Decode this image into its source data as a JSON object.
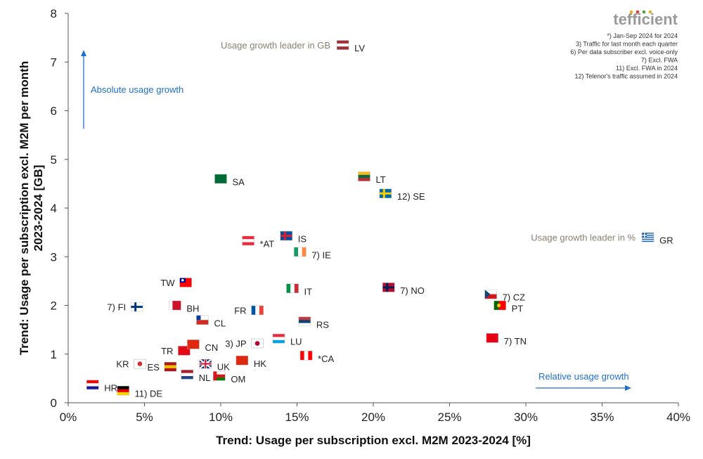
{
  "chart_data": {
    "type": "scatter",
    "xlabel": "Trend: Usage per subscription excl. M2M 2023-2024 [%]",
    "ylabel_line1": "Trend: Usage per subscription excl. M2M per month",
    "ylabel_line2": "2023-2024 [GB]",
    "xlim": [
      0,
      40
    ],
    "ylim": [
      0,
      8
    ],
    "x_ticks": [
      "0%",
      "5%",
      "10%",
      "15%",
      "20%",
      "25%",
      "30%",
      "35%",
      "40%"
    ],
    "y_ticks": [
      "0",
      "1",
      "2",
      "3",
      "4",
      "5",
      "6",
      "7",
      "8"
    ],
    "points": [
      {
        "code": "LV",
        "label": "LV",
        "x": 18.0,
        "y": 7.35,
        "side": "right",
        "colors": [
          "#9e3039",
          "#ffffff",
          "#9e3039"
        ],
        "orient": "h"
      },
      {
        "code": "SA",
        "label": "SA",
        "x": 10.0,
        "y": 4.6,
        "side": "right",
        "colors": [
          "#006c35"
        ],
        "orient": "solid"
      },
      {
        "code": "LT",
        "label": "LT",
        "x": 19.4,
        "y": 4.65,
        "side": "right",
        "colors": [
          "#fdb913",
          "#006a44",
          "#c1272d"
        ],
        "orient": "h"
      },
      {
        "code": "SE",
        "label": "12) SE",
        "x": 20.8,
        "y": 4.3,
        "side": "right",
        "colors": [
          "#006aa7",
          "#fecc00"
        ],
        "orient": "nordic"
      },
      {
        "code": "IS",
        "label": "IS",
        "x": 14.3,
        "y": 3.43,
        "side": "right",
        "colors": [
          "#02529c",
          "#dc1e35"
        ],
        "orient": "nordic"
      },
      {
        "code": "AT",
        "label": "*AT",
        "x": 11.8,
        "y": 3.33,
        "side": "right",
        "colors": [
          "#ed2939",
          "#ffffff",
          "#ed2939"
        ],
        "orient": "h"
      },
      {
        "code": "IE",
        "label": "7) IE",
        "x": 15.2,
        "y": 3.1,
        "side": "right",
        "colors": [
          "#169b62",
          "#ffffff",
          "#ff883e"
        ],
        "orient": "v"
      },
      {
        "code": "GR",
        "label": "GR",
        "x": 38.0,
        "y": 3.4,
        "side": "right",
        "colors": [
          "#0d5eaf",
          "#ffffff"
        ],
        "orient": "stripes"
      },
      {
        "code": "TW",
        "label": "TW",
        "x": 7.7,
        "y": 2.47,
        "side": "left",
        "colors": [
          "#fe0000",
          "#000095"
        ],
        "orient": "canton"
      },
      {
        "code": "IT",
        "label": "IT",
        "x": 14.7,
        "y": 2.35,
        "side": "right",
        "colors": [
          "#009246",
          "#ffffff",
          "#ce2b37"
        ],
        "orient": "v"
      },
      {
        "code": "NO",
        "label": "7) NO",
        "x": 21.0,
        "y": 2.37,
        "side": "right",
        "colors": [
          "#ba0c2f",
          "#00205b"
        ],
        "orient": "nordic"
      },
      {
        "code": "CZ",
        "label": "7) CZ",
        "x": 27.7,
        "y": 2.23,
        "side": "right",
        "colors": [
          "#ffffff",
          "#d7141a",
          "#11457e"
        ],
        "orient": "cz"
      },
      {
        "code": "PT",
        "label": "PT",
        "x": 28.3,
        "y": 2.0,
        "side": "right",
        "colors": [
          "#006600",
          "#ff0000"
        ],
        "orient": "pt"
      },
      {
        "code": "FI",
        "label": "7) FI",
        "x": 4.5,
        "y": 1.97,
        "side": "left",
        "colors": [
          "#ffffff",
          "#003580"
        ],
        "orient": "nordic"
      },
      {
        "code": "BH",
        "label": "BH",
        "x": 7.0,
        "y": 2.0,
        "side": "right",
        "colors": [
          "#ffffff",
          "#ce1126"
        ],
        "orient": "bh"
      },
      {
        "code": "FR",
        "label": "FR",
        "x": 12.4,
        "y": 1.9,
        "side": "left",
        "colors": [
          "#0055a4",
          "#ffffff",
          "#ef4135"
        ],
        "orient": "v"
      },
      {
        "code": "CL",
        "label": "CL",
        "x": 8.8,
        "y": 1.7,
        "side": "right",
        "colors": [
          "#ffffff",
          "#d52b1e",
          "#0039a6"
        ],
        "orient": "canton2"
      },
      {
        "code": "RS",
        "label": "RS",
        "x": 15.5,
        "y": 1.67,
        "side": "right",
        "colors": [
          "#c6363c",
          "#0c4076",
          "#ffffff"
        ],
        "orient": "h"
      },
      {
        "code": "LU",
        "label": "LU",
        "x": 13.8,
        "y": 1.32,
        "side": "right",
        "colors": [
          "#ed2939",
          "#ffffff",
          "#00a1de"
        ],
        "orient": "h"
      },
      {
        "code": "TN",
        "label": "7) TN",
        "x": 27.8,
        "y": 1.33,
        "side": "right",
        "colors": [
          "#e70013"
        ],
        "orient": "solid"
      },
      {
        "code": "TR",
        "label": "TR",
        "x": 7.6,
        "y": 1.07,
        "side": "left",
        "colors": [
          "#e30a17"
        ],
        "orient": "solid"
      },
      {
        "code": "CN",
        "label": "CN",
        "x": 8.2,
        "y": 1.2,
        "side": "right",
        "colors": [
          "#de2910"
        ],
        "orient": "solid"
      },
      {
        "code": "JP",
        "label": "3) JP",
        "x": 12.4,
        "y": 1.22,
        "side": "left",
        "colors": [
          "#ffffff",
          "#bc002d"
        ],
        "orient": "jp"
      },
      {
        "code": "CA",
        "label": "*CA",
        "x": 15.6,
        "y": 0.97,
        "side": "right",
        "colors": [
          "#ff0000",
          "#ffffff",
          "#ff0000"
        ],
        "orient": "v"
      },
      {
        "code": "HK",
        "label": "HK",
        "x": 11.4,
        "y": 0.87,
        "side": "right",
        "colors": [
          "#de2910"
        ],
        "orient": "solid"
      },
      {
        "code": "KR",
        "label": "KR",
        "x": 4.7,
        "y": 0.8,
        "side": "left",
        "colors": [
          "#ffffff",
          "#cd2e3a"
        ],
        "orient": "jp"
      },
      {
        "code": "ES",
        "label": "ES",
        "x": 6.7,
        "y": 0.74,
        "side": "left",
        "colors": [
          "#aa151b",
          "#f1bf00",
          "#aa151b"
        ],
        "orient": "h"
      },
      {
        "code": "UK",
        "label": "UK",
        "x": 9.0,
        "y": 0.8,
        "side": "right",
        "colors": [
          "#012169",
          "#c8102e"
        ],
        "orient": "uk"
      },
      {
        "code": "NL",
        "label": "NL",
        "x": 7.8,
        "y": 0.58,
        "side": "right",
        "colors": [
          "#ae1c28",
          "#ffffff",
          "#21468b"
        ],
        "orient": "h"
      },
      {
        "code": "OM",
        "label": "OM",
        "x": 9.9,
        "y": 0.55,
        "side": "right",
        "colors": [
          "#ffffff",
          "#db161b",
          "#008000"
        ],
        "orient": "om"
      },
      {
        "code": "HR",
        "label": "HR",
        "x": 1.6,
        "y": 0.37,
        "side": "right",
        "colors": [
          "#ff0000",
          "#ffffff",
          "#171796"
        ],
        "orient": "h"
      },
      {
        "code": "DE",
        "label": "11) DE",
        "x": 3.6,
        "y": 0.25,
        "side": "right",
        "colors": [
          "#000000",
          "#dd0000",
          "#ffce00"
        ],
        "orient": "h"
      }
    ],
    "annotations": {
      "gb_leader": "Usage growth leader in GB",
      "pct_leader": "Usage growth leader in %",
      "absolute": "Absolute usage growth",
      "relative": "Relative usage growth"
    },
    "notes": [
      "*) Jan-Sep 2024 for 2024",
      "3) Traffic for last month each quarter",
      "6) Per data subscriber excl. voice-only",
      "7) Excl. FWA",
      "11) Excl. FWA in 2024",
      "12) Telenor's traffic assumed in 2024"
    ],
    "logo": "tefficient",
    "accent_color": "#1f6fd0"
  }
}
